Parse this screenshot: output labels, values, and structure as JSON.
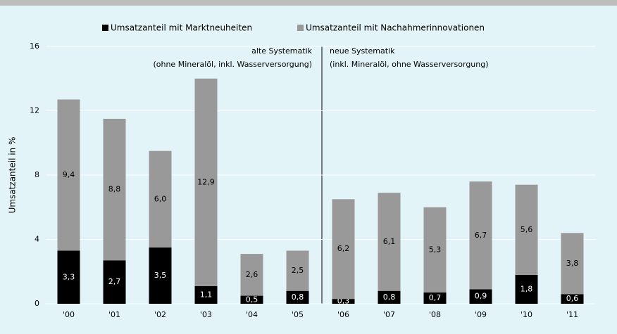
{
  "chart_data": {
    "type": "stacked_bar",
    "ylabel": "Umsatzanteil in %",
    "categories": [
      "'00",
      "'01",
      "'02",
      "'03",
      "'04",
      "'05",
      "'06",
      "'07",
      "'08",
      "'09",
      "'10",
      "'11"
    ],
    "series": [
      {
        "name": "Umsatzanteil mit Marktneuheiten",
        "color": "#000000",
        "values": [
          3.3,
          2.7,
          3.5,
          1.1,
          0.5,
          0.8,
          0.3,
          0.8,
          0.7,
          0.9,
          1.8,
          0.6
        ],
        "value_labels": [
          "3,3",
          "2,7",
          "3,5",
          "1,1",
          "0,5",
          "0,8",
          "0,3",
          "0,8",
          "0,7",
          "0,9",
          "1,8",
          "0,6"
        ]
      },
      {
        "name": "Umsatzanteil mit Nachahmerinnovationen",
        "color": "#999999",
        "values": [
          9.4,
          8.8,
          6.0,
          12.9,
          2.6,
          2.5,
          6.2,
          6.1,
          5.3,
          6.7,
          5.6,
          3.8
        ],
        "value_labels": [
          "9,4",
          "8,8",
          "6,0",
          "12,9",
          "2,6",
          "2,5",
          "6,2",
          "6,1",
          "5,3",
          "6,7",
          "5,6",
          "3,8"
        ]
      }
    ],
    "annotations": [
      "alte Systematik",
      "(ohne Mineralöl, inkl. Wasserversorgung)",
      "neue Systematik",
      "(inkl. Mineralöl, ohne Wasserversorgung)"
    ],
    "ylim": [
      0,
      16
    ],
    "yticks": [
      0,
      4,
      8,
      12,
      16
    ],
    "grid": true,
    "legend": "top"
  }
}
